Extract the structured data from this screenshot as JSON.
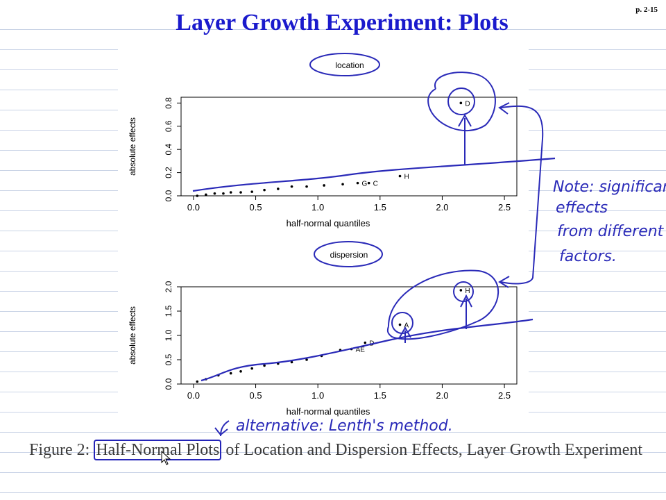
{
  "page": {
    "title": "Layer Growth Experiment: Plots",
    "page_number": "p. 2-15"
  },
  "caption": {
    "prefix": "Figure 2: ",
    "highlight": "Half-Normal Plots",
    "rest": " of Location and Dispersion Effects, Layer Growth Experiment"
  },
  "annotations": {
    "location_label": "location",
    "dispersion_label": "dispersion",
    "note_lines": [
      "Note: significant",
      "effects",
      "from different",
      "factors."
    ],
    "alternative": "alternative: Lenth's method."
  },
  "colors": {
    "title": "#1a1acc",
    "ink": "#2a2ab8",
    "caption": "#3a3a3a"
  },
  "chart_data": [
    {
      "type": "scatter",
      "xlabel": "half-normal quantiles",
      "ylabel": "absolute effects",
      "xlim": [
        -0.1,
        2.6
      ],
      "ylim": [
        0,
        0.85
      ],
      "xticks": [
        "0.0",
        "0.5",
        "1.0",
        "1.5",
        "2.0",
        "2.5"
      ],
      "yticks": [
        "0.0",
        "0.2",
        "0.4",
        "0.6",
        "0.8"
      ],
      "points": [
        {
          "x": 0.03,
          "y": 0.0
        },
        {
          "x": 0.1,
          "y": 0.01
        },
        {
          "x": 0.17,
          "y": 0.02
        },
        {
          "x": 0.24,
          "y": 0.02
        },
        {
          "x": 0.3,
          "y": 0.03
        },
        {
          "x": 0.38,
          "y": 0.03
        },
        {
          "x": 0.47,
          "y": 0.035
        },
        {
          "x": 0.57,
          "y": 0.05
        },
        {
          "x": 0.68,
          "y": 0.06
        },
        {
          "x": 0.79,
          "y": 0.08
        },
        {
          "x": 0.91,
          "y": 0.08
        },
        {
          "x": 1.05,
          "y": 0.09
        },
        {
          "x": 1.2,
          "y": 0.1
        },
        {
          "x": 1.32,
          "y": 0.11,
          "label": "G"
        },
        {
          "x": 1.41,
          "y": 0.11,
          "label": "C"
        },
        {
          "x": 1.66,
          "y": 0.17,
          "label": "H"
        },
        {
          "x": 2.15,
          "y": 0.8,
          "label": "D"
        }
      ]
    },
    {
      "type": "scatter",
      "xlabel": "half-normal quantiles",
      "ylabel": "absolute effects",
      "xlim": [
        -0.1,
        2.6
      ],
      "ylim": [
        0,
        2.0
      ],
      "xticks": [
        "0.0",
        "0.5",
        "1.0",
        "1.5",
        "2.0",
        "2.5"
      ],
      "yticks": [
        "0.0",
        "0.5",
        "1.0",
        "1.5",
        "2.0"
      ],
      "points": [
        {
          "x": 0.03,
          "y": 0.05
        },
        {
          "x": 0.1,
          "y": 0.1
        },
        {
          "x": 0.2,
          "y": 0.18
        },
        {
          "x": 0.3,
          "y": 0.22
        },
        {
          "x": 0.38,
          "y": 0.26
        },
        {
          "x": 0.47,
          "y": 0.32
        },
        {
          "x": 0.57,
          "y": 0.38
        },
        {
          "x": 0.68,
          "y": 0.42
        },
        {
          "x": 0.79,
          "y": 0.45
        },
        {
          "x": 0.91,
          "y": 0.5
        },
        {
          "x": 1.03,
          "y": 0.58
        },
        {
          "x": 1.18,
          "y": 0.7
        },
        {
          "x": 1.27,
          "y": 0.72,
          "label": "AE"
        },
        {
          "x": 1.38,
          "y": 0.85,
          "label": "D"
        },
        {
          "x": 1.66,
          "y": 1.22,
          "label": "A"
        },
        {
          "x": 2.15,
          "y": 1.93,
          "label": "H"
        }
      ]
    }
  ]
}
